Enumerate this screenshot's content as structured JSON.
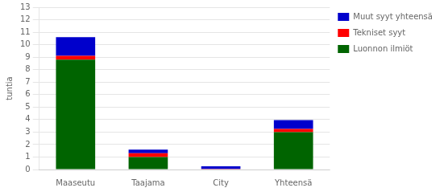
{
  "chart_data": {
    "type": "bar",
    "categories": [
      "Maaseutu",
      "Taajama",
      "City",
      "Yhteensä"
    ],
    "series": [
      {
        "name": "Luonnon ilmiöt",
        "color": "#006400",
        "values": [
          8.8,
          1.0,
          0.0,
          3.0
        ]
      },
      {
        "name": "Tekniset syyt",
        "color": "#ff0000",
        "values": [
          0.3,
          0.3,
          0.05,
          0.25
        ]
      },
      {
        "name": "Muut syyt yhteensä",
        "color": "#0000cc",
        "values": [
          1.5,
          0.3,
          0.2,
          0.7
        ]
      }
    ],
    "ylabel": "tuntia",
    "ylim": [
      0,
      13
    ],
    "yticks": [
      0,
      1,
      2,
      3,
      4,
      5,
      6,
      7,
      8,
      9,
      10,
      11,
      12,
      13
    ],
    "stacked": true,
    "grid": true,
    "legend": "right"
  }
}
